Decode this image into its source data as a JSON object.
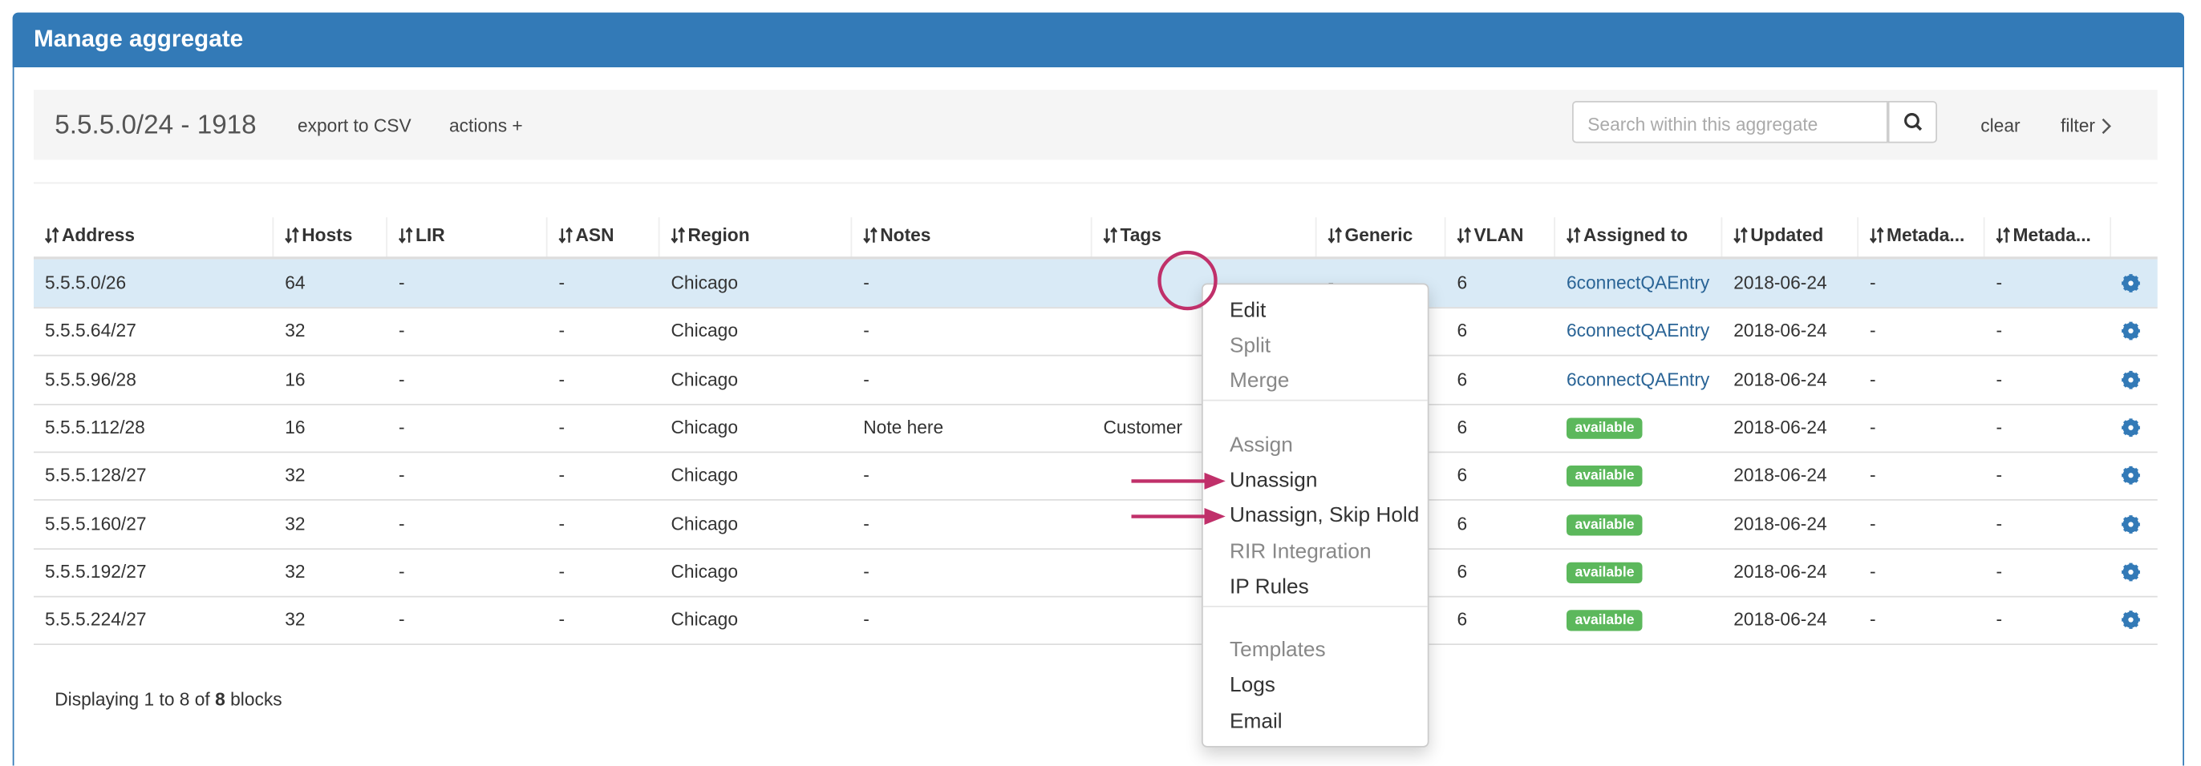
{
  "header": {
    "title": "Manage aggregate"
  },
  "toolbar": {
    "range": "5.5.5.0/24 - 1918",
    "export": "export to CSV",
    "actions": "actions +",
    "search_placeholder": "Search within this aggregate",
    "clear": "clear",
    "filter": "filter"
  },
  "table": {
    "columns": [
      "Address",
      "Hosts",
      "LIR",
      "ASN",
      "Region",
      "Notes",
      "Tags",
      "Generic",
      "VLAN",
      "Assigned to",
      "Updated",
      "Metada...",
      "Metada..."
    ],
    "rows": [
      [
        "5.5.5.0/26",
        "64",
        "-",
        "-",
        "Chicago",
        "-",
        null,
        "-",
        "6",
        "6connectQAEntry",
        "2018-06-24",
        "-",
        "-"
      ],
      [
        "5.5.5.64/27",
        "32",
        "-",
        "-",
        "Chicago",
        "-",
        null,
        "-",
        "6",
        "6connectQAEntry",
        "2018-06-24",
        "-",
        "-"
      ],
      [
        "5.5.5.96/28",
        "16",
        "-",
        "-",
        "Chicago",
        "-",
        null,
        "-",
        "6",
        "6connectQAEntry",
        "2018-06-24",
        "-",
        "-"
      ],
      [
        "5.5.5.112/28",
        "16",
        "-",
        "-",
        "Chicago",
        "Note here",
        "Customer",
        "-",
        "6",
        "available",
        "2018-06-24",
        "-",
        "-"
      ],
      [
        "5.5.5.128/27",
        "32",
        "-",
        "-",
        "Chicago",
        "-",
        null,
        "-",
        "6",
        "available",
        "2018-06-24",
        "-",
        "-"
      ],
      [
        "5.5.5.160/27",
        "32",
        "-",
        "-",
        "Chicago",
        "-",
        null,
        "-",
        "6",
        "available",
        "2018-06-24",
        "-",
        "-"
      ],
      [
        "5.5.5.192/27",
        "32",
        "-",
        "-",
        "Chicago",
        "-",
        null,
        "-",
        "6",
        "available",
        "2018-06-24",
        "-",
        "-"
      ],
      [
        "5.5.5.224/27",
        "32",
        "-",
        "-",
        "Chicago",
        "-",
        null,
        "-",
        "6",
        "available",
        "2018-06-24",
        "-",
        "-"
      ]
    ],
    "assigned_badge": [
      false,
      false,
      false,
      true,
      true,
      true,
      true,
      true
    ],
    "selected_row": 0
  },
  "footer": {
    "prefix": "Displaying 1 to 8 of",
    "count": "8",
    "suffix": "blocks"
  },
  "menu": {
    "items": [
      {
        "label": "Edit",
        "disabled": false
      },
      {
        "label": "Split",
        "disabled": true
      },
      {
        "label": "Merge",
        "disabled": true,
        "divider_after": true
      },
      {
        "label": "Assign",
        "disabled": true
      },
      {
        "label": "Unassign",
        "disabled": false,
        "arrow": true
      },
      {
        "label": "Unassign, Skip Hold",
        "disabled": false,
        "arrow": true
      },
      {
        "label": "RIR Integration",
        "disabled": true
      },
      {
        "label": "IP Rules",
        "disabled": false,
        "divider_after": true
      },
      {
        "label": "Templates",
        "disabled": true
      },
      {
        "label": "Logs",
        "disabled": false
      },
      {
        "label": "Email",
        "disabled": false
      }
    ]
  }
}
